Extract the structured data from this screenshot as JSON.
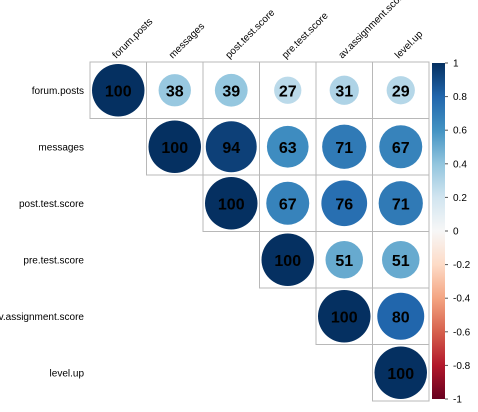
{
  "chart_data": {
    "type": "heatmap",
    "subtype": "upper-triangle correlation matrix (circles)",
    "variables": [
      "forum.posts",
      "messages",
      "post.test.score",
      "pre.test.score",
      "av.assignment.score",
      "level.up"
    ],
    "row_labels": [
      "forum.posts",
      "messages",
      "post.test.score",
      "pre.test.score",
      "av.assignment.score",
      "level.up"
    ],
    "col_labels": [
      "forum.posts",
      "messages",
      "post.test.score",
      "pre.test.score",
      "av.assignment.score",
      "level.up"
    ],
    "cells": [
      {
        "row": 0,
        "col": 0,
        "value": 100,
        "label": "100"
      },
      {
        "row": 0,
        "col": 1,
        "value": 38,
        "label": "38"
      },
      {
        "row": 0,
        "col": 2,
        "value": 39,
        "label": "39"
      },
      {
        "row": 0,
        "col": 3,
        "value": 27,
        "label": "27"
      },
      {
        "row": 0,
        "col": 4,
        "value": 31,
        "label": "31"
      },
      {
        "row": 0,
        "col": 5,
        "value": 29,
        "label": "29"
      },
      {
        "row": 1,
        "col": 1,
        "value": 100,
        "label": "100"
      },
      {
        "row": 1,
        "col": 2,
        "value": 94,
        "label": "94"
      },
      {
        "row": 1,
        "col": 3,
        "value": 63,
        "label": "63"
      },
      {
        "row": 1,
        "col": 4,
        "value": 71,
        "label": "71"
      },
      {
        "row": 1,
        "col": 5,
        "value": 67,
        "label": "67"
      },
      {
        "row": 2,
        "col": 2,
        "value": 100,
        "label": "100"
      },
      {
        "row": 2,
        "col": 3,
        "value": 67,
        "label": "67"
      },
      {
        "row": 2,
        "col": 4,
        "value": 76,
        "label": "76"
      },
      {
        "row": 2,
        "col": 5,
        "value": 71,
        "label": "71"
      },
      {
        "row": 3,
        "col": 3,
        "value": 100,
        "label": "100"
      },
      {
        "row": 3,
        "col": 4,
        "value": 51,
        "label": "51"
      },
      {
        "row": 3,
        "col": 5,
        "value": 51,
        "label": "51"
      },
      {
        "row": 4,
        "col": 4,
        "value": 100,
        "label": "100"
      },
      {
        "row": 4,
        "col": 5,
        "value": 80,
        "label": "80"
      },
      {
        "row": 5,
        "col": 5,
        "value": 100,
        "label": "100"
      }
    ],
    "colorbar": {
      "range": [
        -1,
        1
      ],
      "ticks": [
        "1",
        "0.8",
        "0.6",
        "0.4",
        "0.2",
        "0",
        "-0.2",
        "-0.4",
        "-0.6",
        "-0.8",
        "-1"
      ],
      "colors": [
        "#053061",
        "#2166ac",
        "#4393c3",
        "#92c5de",
        "#d1e5f0",
        "#f7f7f7",
        "#fddbc7",
        "#f4a582",
        "#d6604d",
        "#b2182b",
        "#67001f"
      ]
    },
    "grid": true,
    "legend": "right"
  }
}
